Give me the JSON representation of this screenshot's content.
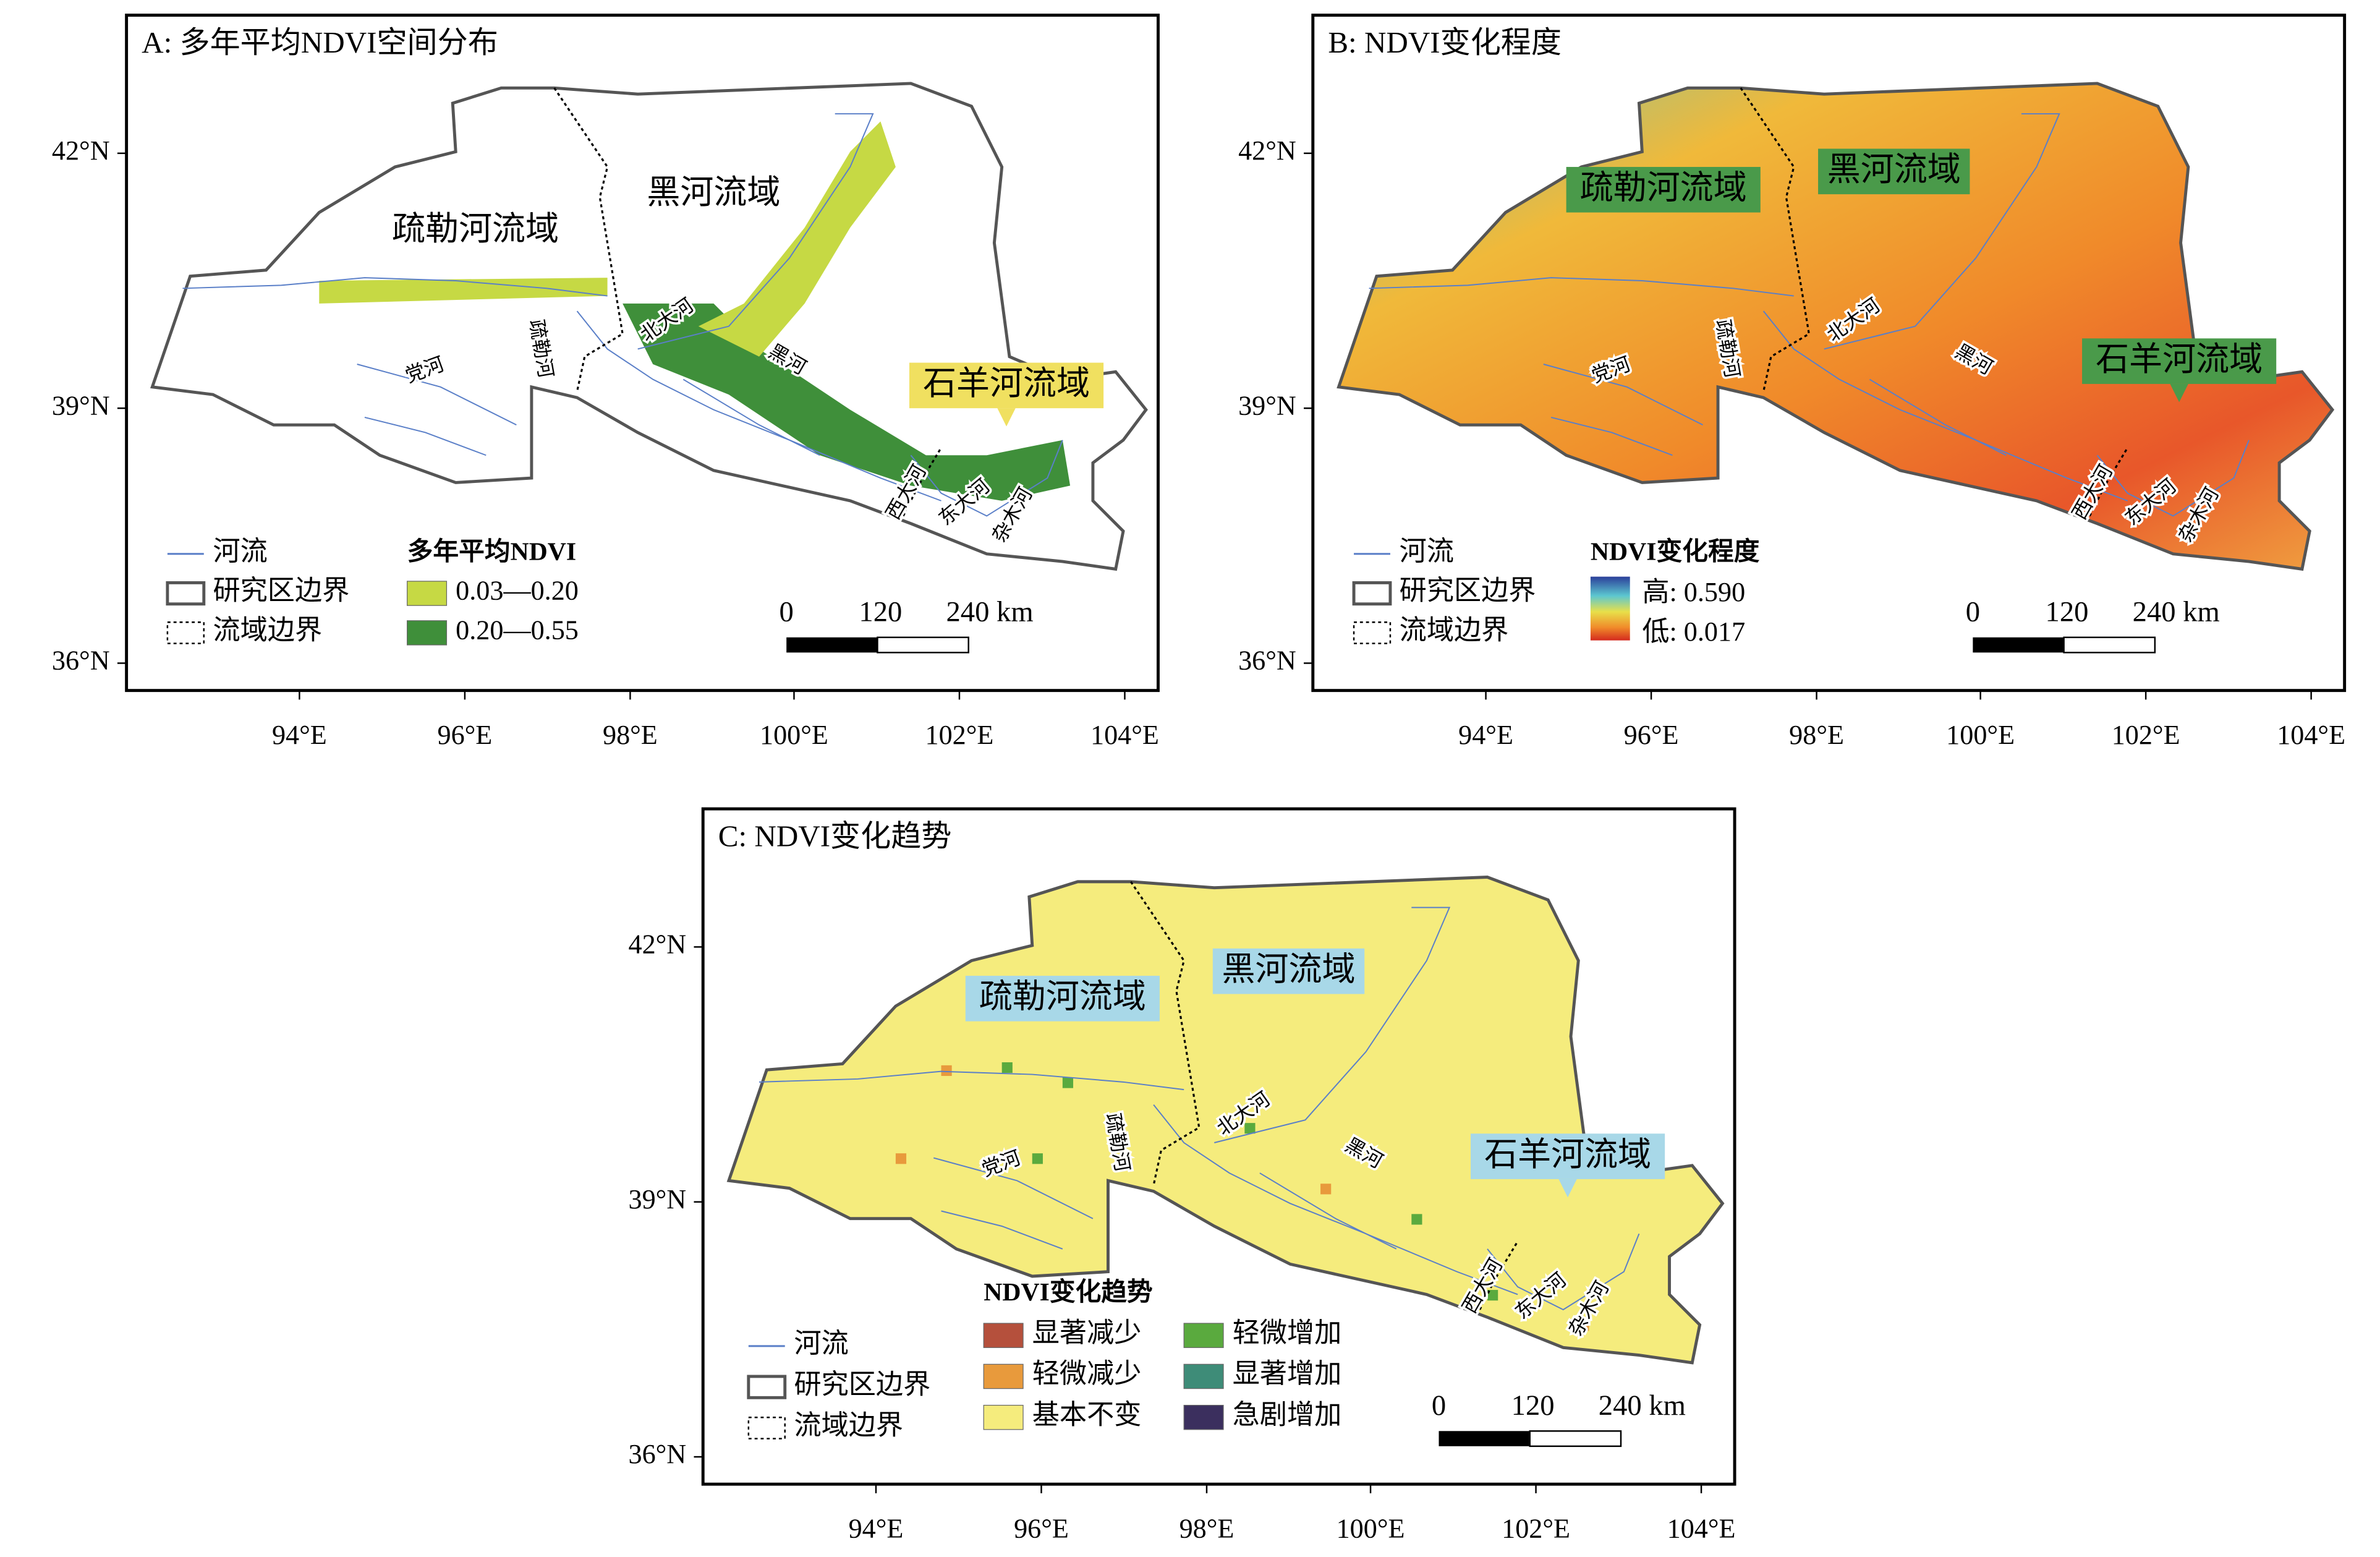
{
  "common": {
    "lat_labels": [
      "42°N",
      "39°N",
      "36°N"
    ],
    "lon_labels": [
      "94°E",
      "96°E",
      "98°E",
      "100°E",
      "102°E",
      "104°E"
    ],
    "basins": [
      "疏勒河流域",
      "黑河流域",
      "石羊河流域"
    ],
    "rivers": [
      "党河",
      "疏勒河",
      "北大河",
      "黑河",
      "西大河",
      "东大河",
      "杂木河"
    ],
    "legend_base": [
      "河流",
      "研究区边界",
      "流域边界"
    ],
    "scale_bar": [
      "0",
      "120",
      "240 km"
    ]
  },
  "panels": [
    {
      "title": "A: 多年平均NDVI空间分布",
      "legend_title": "多年平均NDVI",
      "legend_items": [
        {
          "label": "0.03—0.20",
          "color": "#c6d944"
        },
        {
          "label": "0.20—0.55",
          "color": "#3f8f3a"
        }
      ]
    },
    {
      "title": "B: NDVI变化程度",
      "legend_title": "NDVI变化程度",
      "legend_items": [
        {
          "label": "高: 0.590"
        },
        {
          "label": "低: 0.017"
        }
      ]
    },
    {
      "title": "C: NDVI变化趋势",
      "legend_title": "NDVI变化趋势",
      "legend_items": [
        {
          "label": "显著减少",
          "color": "#b5503c"
        },
        {
          "label": "轻微减少",
          "color": "#e89a3c"
        },
        {
          "label": "基本不变",
          "color": "#f5ec7d"
        },
        {
          "label": "轻微增加",
          "color": "#5aaa3e"
        },
        {
          "label": "显著增加",
          "color": "#3e8c78"
        },
        {
          "label": "急剧增加",
          "color": "#3b2f5e"
        }
      ]
    }
  ]
}
